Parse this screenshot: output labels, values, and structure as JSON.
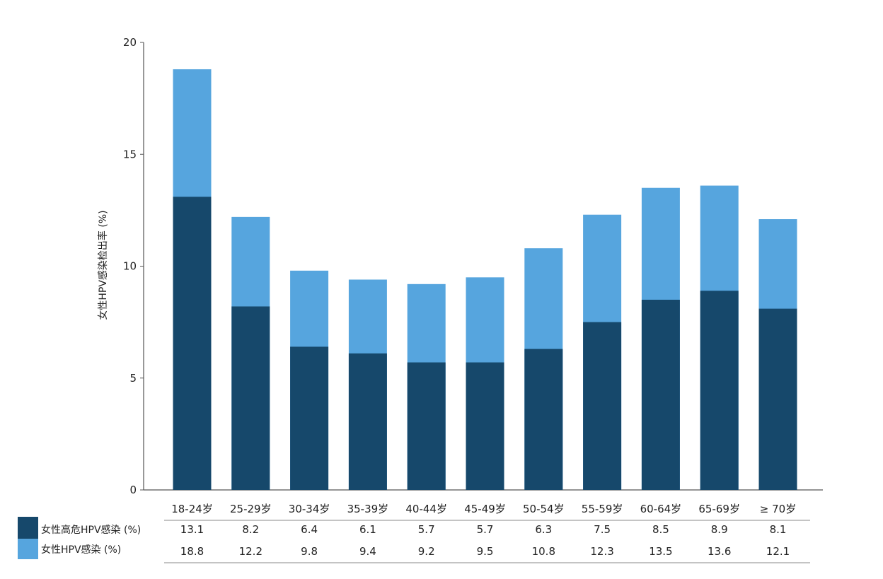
{
  "chart_data": {
    "type": "bar",
    "ylabel": "女性HPV感染检出率 (%)",
    "ylim": [
      0,
      20
    ],
    "yticks": [
      0,
      5,
      10,
      15,
      20
    ],
    "categories": [
      "18-24岁",
      "25-29岁",
      "30-34岁",
      "35-39岁",
      "40-44岁",
      "45-49岁",
      "50-54岁",
      "55-59岁",
      "60-64岁",
      "65-69岁",
      "≥ 70岁"
    ],
    "series": [
      {
        "name": "女性高危HPV感染 (%)",
        "values": [
          13.1,
          8.2,
          6.4,
          6.1,
          5.7,
          5.7,
          6.3,
          7.5,
          8.5,
          8.9,
          8.1
        ],
        "color": "#16486b"
      },
      {
        "name": "女性HPV感染 (%)",
        "values": [
          18.8,
          12.2,
          9.8,
          9.4,
          9.2,
          9.5,
          10.8,
          12.3,
          13.5,
          13.6,
          12.1
        ],
        "color": "#56a5de"
      }
    ],
    "overlay": true,
    "grid": false,
    "legend": "bottom-left table"
  }
}
